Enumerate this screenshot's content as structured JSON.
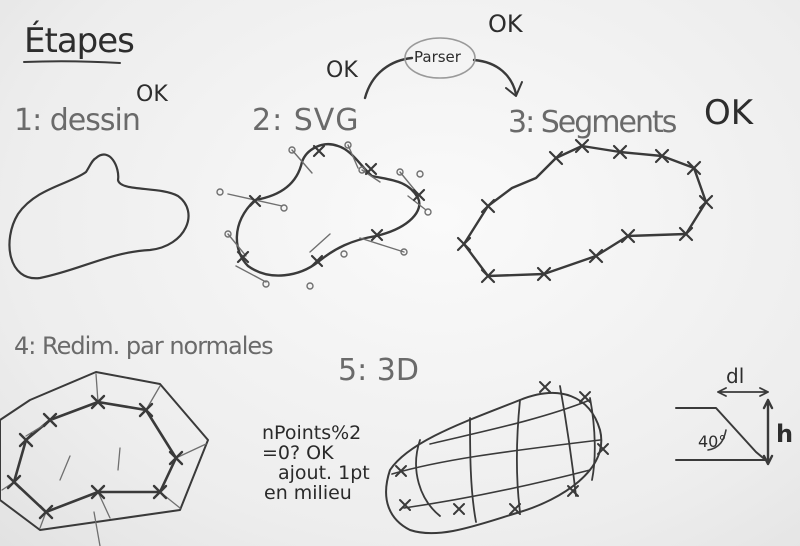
{
  "title": "Étapes",
  "flow": {
    "ok_left": "OK",
    "parser_label": "Parser",
    "ok_top": "OK"
  },
  "steps": [
    {
      "label": "1: dessin",
      "status": "OK"
    },
    {
      "label": "2: SVG"
    },
    {
      "label": "3: Segments",
      "status": "OK"
    },
    {
      "label": "4: Redim. par normales"
    },
    {
      "label": "5: 3D"
    }
  ],
  "note": {
    "line1": "nPoints%2",
    "line2": "=0? OK",
    "line3": "ajout. 1pt",
    "line4": "en milieu"
  },
  "angle_sketch": {
    "dl": "dl",
    "angle": "40°",
    "h": "h"
  },
  "colors": {
    "paper": "#f2f2f2",
    "pencil": "#2d2d2d",
    "soft_pencil": "#6a6a6a"
  }
}
